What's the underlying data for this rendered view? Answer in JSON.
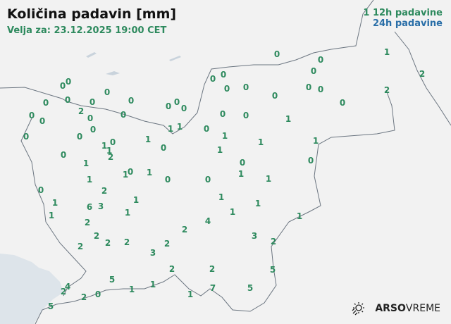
{
  "header": {
    "title": "Količina padavin [mm]",
    "valid_for": "Velja za: 23.12.2025 19:00 CET"
  },
  "legend": {
    "sample_value": "1",
    "label_12h": "12h padavine",
    "label_24h": "24h padavine",
    "color_12h": "#2e8a5e",
    "color_24h": "#2a6fa8"
  },
  "stations_12h_values": [
    "0",
    "0",
    "1",
    "0",
    "2",
    "0",
    "0",
    "0",
    "0",
    "0",
    "0",
    "2",
    "0",
    "0",
    "0",
    "0",
    "0",
    "0",
    "0",
    "0",
    "0",
    "0",
    "0",
    "0",
    "2",
    "0",
    "0",
    "0",
    "0",
    "0",
    "0",
    "1",
    "0",
    "0",
    "0",
    "1",
    "1",
    "0",
    "1",
    "1",
    "0",
    "1",
    "1",
    "1",
    "0",
    "1",
    "2",
    "0",
    "1",
    "0",
    "0",
    "1",
    "1",
    "0",
    "1",
    "0",
    "0",
    "1",
    "1",
    "1",
    "0",
    "2",
    "1",
    "1",
    "6",
    "3",
    "1",
    "1",
    "1",
    "1",
    "1",
    "1",
    "2",
    "4",
    "2",
    "2",
    "2",
    "2",
    "2",
    "3",
    "2",
    "2",
    "3",
    "2",
    "2",
    "5",
    "5",
    "1",
    "1",
    "4",
    "2",
    "2",
    "0",
    "1",
    "7",
    "5",
    "5",
    "1"
  ],
  "logo": {
    "icon": "sun-rain-icon",
    "brand": "ARSO",
    "product": "VREME"
  },
  "colors": {
    "land": "#f2f2f2",
    "sea": "#dde4ea",
    "border": "#6b7580"
  }
}
